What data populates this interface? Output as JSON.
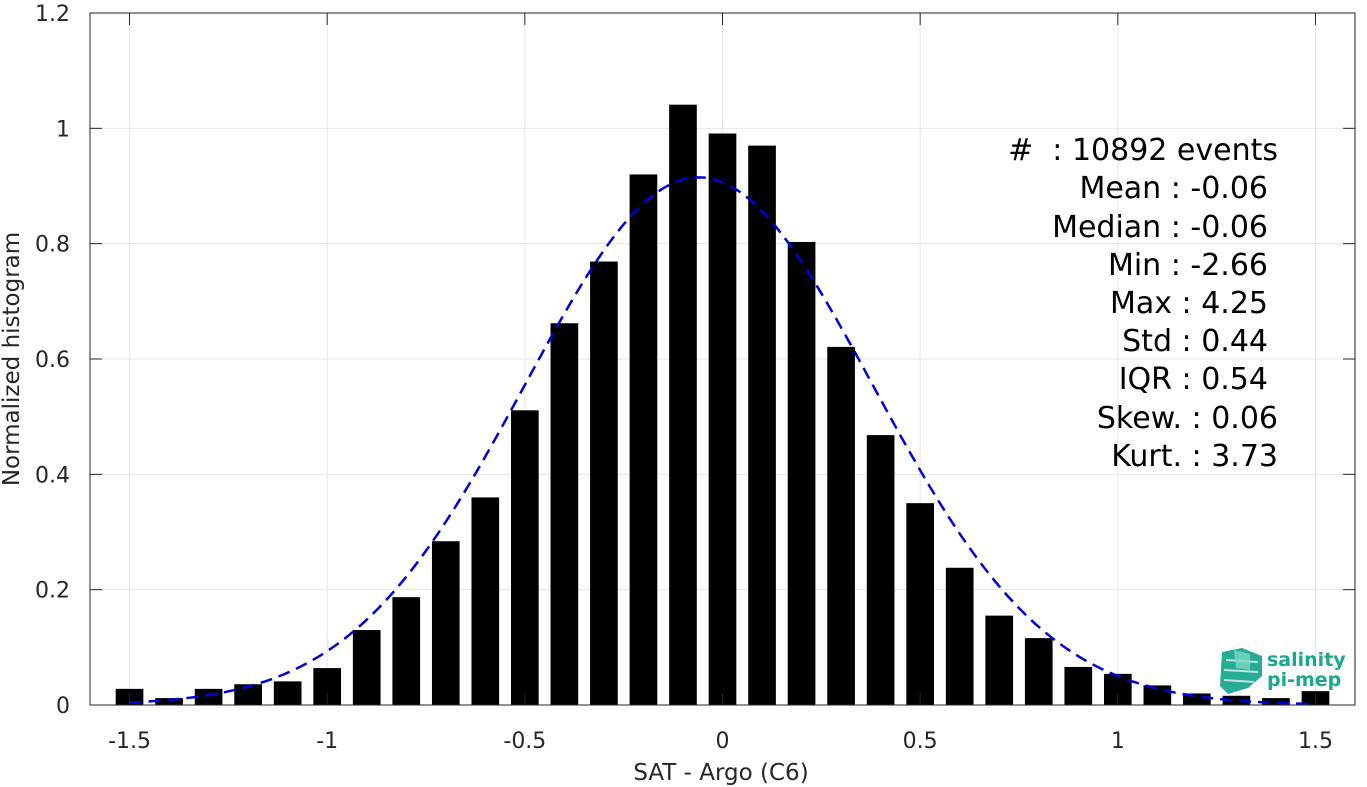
{
  "chart_data": {
    "type": "bar",
    "xlabel": "SAT - Argo (C6)",
    "ylabel": "Normalized histogram",
    "xlim": [
      -1.6,
      1.6
    ],
    "ylim": [
      0,
      1.2
    ],
    "xticks": [
      "-1.5",
      "-1",
      "-0.5",
      "0",
      "0.5",
      "1",
      "1.5"
    ],
    "yticks": [
      "0",
      "0.2",
      "0.4",
      "0.6",
      "0.8",
      "1",
      "1.2"
    ],
    "grid": true,
    "bar_color": "#000000",
    "fit_color": "#0000dd",
    "bars": {
      "x": [
        -1.5,
        -1.4,
        -1.3,
        -1.2,
        -1.1,
        -1.0,
        -0.9,
        -0.8,
        -0.7,
        -0.6,
        -0.5,
        -0.4,
        -0.3,
        -0.2,
        -0.1,
        0.0,
        0.1,
        0.2,
        0.3,
        0.4,
        0.5,
        0.6,
        0.7,
        0.8,
        0.9,
        1.0,
        1.1,
        1.2,
        1.3,
        1.4,
        1.5
      ],
      "values": [
        0.028,
        0.012,
        0.028,
        0.036,
        0.041,
        0.064,
        0.13,
        0.187,
        0.284,
        0.36,
        0.511,
        0.662,
        0.769,
        0.92,
        1.041,
        0.991,
        0.97,
        0.803,
        0.621,
        0.468,
        0.35,
        0.238,
        0.155,
        0.116,
        0.066,
        0.054,
        0.034,
        0.02,
        0.016,
        0.012,
        0.024
      ]
    },
    "fit": {
      "style": "dashed",
      "mean": -0.06,
      "std": 0.44,
      "peak": 0.915,
      "x_range": [
        -1.5,
        1.5
      ]
    },
    "stats": [
      {
        "label": "#  : 10892 events"
      },
      {
        "label": "Mean : -0.06"
      },
      {
        "label": "Median : -0.06"
      },
      {
        "label": "Min : -2.66"
      },
      {
        "label": "Max : 4.25"
      },
      {
        "label": "Std : 0.44"
      },
      {
        "label": "IQR : 0.54"
      },
      {
        "label": "Skew. : 0.06"
      },
      {
        "label": "Kurt. : 3.73"
      }
    ]
  },
  "logo": {
    "line1": "salinity",
    "line2": "pi-mep",
    "color": "#1aa88e"
  }
}
